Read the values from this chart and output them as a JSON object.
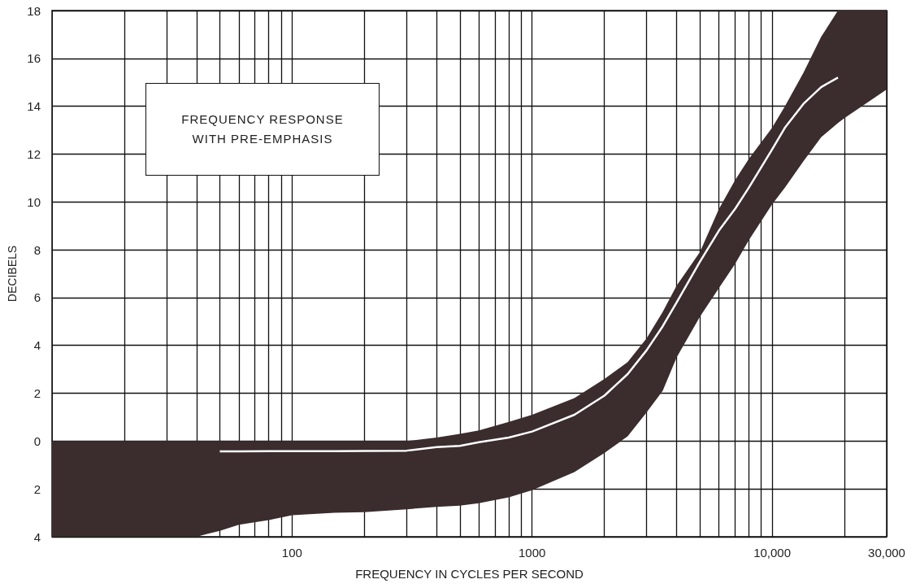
{
  "chart_data": {
    "type": "line",
    "title": "FREQUENCY RESPONSE WITH PRE-EMPHASIS",
    "xlabel": "FREQUENCY IN CYCLES PER SECOND",
    "ylabel": "DECIBELS",
    "log": "x",
    "grid": true,
    "marker": "none",
    "line_style": "solid",
    "xlim": [
      10,
      30000
    ],
    "ylim": [
      -4,
      18
    ],
    "xticks": [
      {
        "value": 20,
        "label": null
      },
      {
        "value": 30,
        "label": null
      },
      {
        "value": 40,
        "label": null
      },
      {
        "value": 50,
        "label": null
      },
      {
        "value": 60,
        "label": null
      },
      {
        "value": 70,
        "label": null
      },
      {
        "value": 80,
        "label": null
      },
      {
        "value": 90,
        "label": null
      },
      100,
      {
        "value": 200,
        "label": null
      },
      {
        "value": 300,
        "label": null
      },
      {
        "value": 400,
        "label": null
      },
      {
        "value": 500,
        "label": null
      },
      {
        "value": 600,
        "label": null
      },
      {
        "value": 700,
        "label": null
      },
      {
        "value": 800,
        "label": null
      },
      {
        "value": 900,
        "label": null
      },
      1000,
      {
        "value": 2000,
        "label": null
      },
      {
        "value": 3000,
        "label": null
      },
      {
        "value": 4000,
        "label": null
      },
      {
        "value": 5000,
        "label": null
      },
      {
        "value": 6000,
        "label": null
      },
      {
        "value": 7000,
        "label": null
      },
      {
        "value": 8000,
        "label": null
      },
      {
        "value": 9000,
        "label": null
      },
      {
        "value": 10000,
        "label": "10,000"
      },
      {
        "value": 20000,
        "label": null
      },
      {
        "value": 30000,
        "label": "30,000"
      }
    ],
    "yticks": [
      {
        "value": -4,
        "label": "4"
      },
      {
        "value": -2,
        "label": "2"
      },
      0,
      2,
      4,
      6,
      8,
      10,
      12,
      14,
      16,
      18
    ],
    "x": [
      10,
      20,
      30,
      40,
      50,
      60,
      80,
      100,
      150,
      200,
      300,
      400,
      500,
      600,
      800,
      1000,
      1500,
      2000,
      2500,
      3000,
      3500,
      4000,
      5000,
      6000,
      7000,
      8000,
      10000,
      11300,
      13500,
      16000,
      18800,
      20000,
      30000
    ],
    "series": [
      {
        "color": "#ffffff",
        "values": [
          null,
          null,
          null,
          null,
          -0.43,
          -0.43,
          -0.42,
          -0.42,
          -0.42,
          -0.41,
          -0.4,
          -0.25,
          -0.2,
          -0.05,
          0.15,
          0.4,
          1.1,
          1.9,
          2.8,
          3.8,
          4.8,
          5.8,
          7.5,
          8.8,
          9.7,
          10.6,
          12.2,
          13.1,
          14.1,
          14.8,
          15.2,
          null,
          null
        ],
        "lower": [
          -4,
          -4,
          -4,
          -4,
          -3.75,
          -3.5,
          -3.3,
          -3.1,
          -3.0,
          -2.97,
          -2.85,
          -2.75,
          -2.7,
          -2.6,
          -2.35,
          -2.05,
          -1.3,
          -0.5,
          0.2,
          1.2,
          2.1,
          3.5,
          5.2,
          6.4,
          7.4,
          8.4,
          9.9,
          10.6,
          11.7,
          12.7,
          13.3,
          13.5,
          14.7
        ],
        "upper": [
          0,
          0,
          0,
          0,
          0,
          0,
          0,
          0,
          0,
          0,
          0,
          0.15,
          0.3,
          0.45,
          0.8,
          1.1,
          1.8,
          2.6,
          3.3,
          4.3,
          5.4,
          6.5,
          7.9,
          9.7,
          10.9,
          11.8,
          13.1,
          14.0,
          15.4,
          16.9,
          18,
          18,
          18
        ]
      }
    ]
  }
}
